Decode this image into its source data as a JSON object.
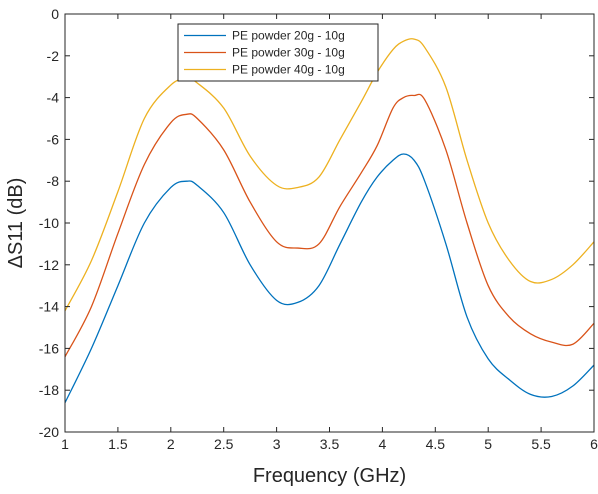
{
  "chart_data": {
    "type": "line",
    "title": "",
    "xlabel": "Frequency (GHz)",
    "ylabel": "ΔS11 (dB)",
    "xlim": [
      1,
      6
    ],
    "ylim": [
      -20,
      0
    ],
    "xticks": [
      "1",
      "1.5",
      "2",
      "2.5",
      "3",
      "3.5",
      "4",
      "4.5",
      "5",
      "5.5",
      "6"
    ],
    "yticks": [
      "0",
      "-2",
      "-4",
      "-6",
      "-8",
      "-10",
      "-12",
      "-14",
      "-16",
      "-18",
      "-20"
    ],
    "grid": false,
    "legend_position": "top-center",
    "x": [
      1.0,
      1.25,
      1.5,
      1.75,
      2.0,
      2.15,
      2.25,
      2.5,
      2.75,
      3.0,
      3.2,
      3.4,
      3.6,
      3.8,
      3.95,
      4.1,
      4.2,
      4.3,
      4.4,
      4.6,
      4.8,
      5.0,
      5.2,
      5.4,
      5.6,
      5.8,
      6.0
    ],
    "series": [
      {
        "name": "PE powder 20g - 10g",
        "color": "#0072BD",
        "values": [
          -18.6,
          -16.0,
          -13.0,
          -10.0,
          -8.3,
          -8.0,
          -8.2,
          -9.5,
          -12.0,
          -13.7,
          -13.8,
          -13.0,
          -11.0,
          -9.0,
          -7.8,
          -7.0,
          -6.7,
          -7.0,
          -8.0,
          -11.0,
          -14.5,
          -16.5,
          -17.5,
          -18.2,
          -18.3,
          -17.8,
          -16.8
        ]
      },
      {
        "name": "PE powder 30g - 10g",
        "color": "#D95319",
        "values": [
          -16.4,
          -14.0,
          -10.5,
          -7.2,
          -5.2,
          -4.8,
          -5.0,
          -6.5,
          -9.0,
          -10.9,
          -11.2,
          -11.0,
          -9.2,
          -7.6,
          -6.3,
          -4.5,
          -4.0,
          -3.9,
          -4.1,
          -6.5,
          -10.0,
          -13.0,
          -14.5,
          -15.3,
          -15.7,
          -15.8,
          -14.8
        ]
      },
      {
        "name": "PE powder 40g - 10g",
        "color": "#EDB120",
        "values": [
          -14.2,
          -11.8,
          -8.5,
          -5.0,
          -3.4,
          -3.1,
          -3.3,
          -4.5,
          -6.8,
          -8.2,
          -8.3,
          -7.8,
          -6.0,
          -4.2,
          -2.8,
          -1.7,
          -1.3,
          -1.2,
          -1.6,
          -3.5,
          -7.0,
          -10.0,
          -11.8,
          -12.8,
          -12.7,
          -12.0,
          -10.9
        ]
      }
    ]
  }
}
